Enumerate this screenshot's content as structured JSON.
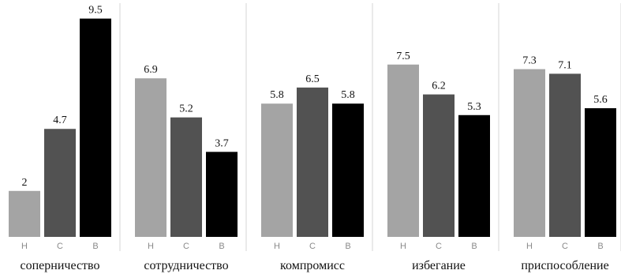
{
  "chart_data": {
    "type": "bar",
    "categories": [
      "соперничество",
      "сотрудничество",
      "компромисс",
      "избегание",
      "приспособление"
    ],
    "sub_labels": [
      "Н",
      "С",
      "В"
    ],
    "colors": [
      "#a4a4a4",
      "#525252",
      "#000000"
    ],
    "values": [
      [
        2,
        4.7,
        9.5
      ],
      [
        6.9,
        5.2,
        3.7
      ],
      [
        5.8,
        6.5,
        5.8
      ],
      [
        7.5,
        6.2,
        5.3
      ],
      [
        7.3,
        7.1,
        5.6
      ]
    ],
    "value_labels": [
      [
        "2",
        "4.7",
        "9.5"
      ],
      [
        "6.9",
        "5.2",
        "3.7"
      ],
      [
        "5.8",
        "6.5",
        "5.8"
      ],
      [
        "7.5",
        "6.2",
        "5.3"
      ],
      [
        "7.3",
        "7.1",
        "5.6"
      ]
    ],
    "ylim": [
      0,
      10
    ],
    "grid": false
  }
}
